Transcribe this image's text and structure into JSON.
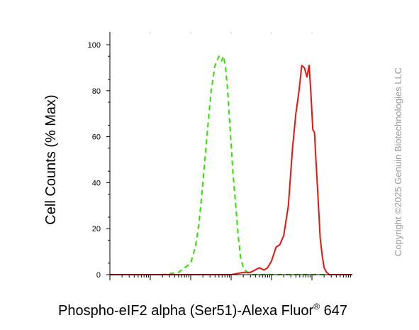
{
  "chart_data": {
    "type": "line",
    "title": "",
    "xlabel": "Phospho-eIF2 alpha (Ser51)-Alexa Fluor",
    "xlabel_superscript": "®",
    "xlabel_suffix": " 647",
    "ylabel": "Cell Counts (% Max)",
    "x_scale": "log",
    "xlim": [
      10,
      10000000
    ],
    "ylim": [
      0,
      100
    ],
    "yticks": [
      "0",
      "20",
      "40",
      "60",
      "80",
      "100"
    ],
    "grid": false,
    "legend": "none",
    "series": [
      {
        "style": "dashed",
        "color": "#33dd00",
        "x": [
          10,
          50,
          200,
          500,
          1000,
          1300,
          1600,
          2000,
          2600,
          3200,
          4000,
          5000,
          5800,
          6500,
          7300,
          8200,
          9500,
          11000,
          13000,
          15000,
          17000,
          20000,
          25000,
          30000,
          40000,
          60000,
          100000,
          1000000,
          10000000
        ],
        "values": [
          0,
          0,
          0,
          1,
          5,
          12,
          22,
          40,
          63,
          80,
          91,
          95,
          93,
          95,
          90,
          80,
          63,
          45,
          30,
          17,
          8,
          3,
          1,
          0,
          0,
          0,
          0,
          0,
          0
        ]
      },
      {
        "style": "solid",
        "color": "#ee1111",
        "x": [
          10,
          10000,
          20000,
          30000,
          50000,
          65000,
          80000,
          100000,
          130000,
          160000,
          200000,
          260000,
          330000,
          400000,
          480000,
          560000,
          650000,
          750000,
          850000,
          950000,
          1050000,
          1150000,
          1300000,
          1450000,
          1600000,
          1800000,
          2000000,
          2300000,
          2700000,
          3100000,
          3600000,
          4200000,
          5000000,
          10000000
        ],
        "values": [
          0,
          0,
          1,
          1,
          3,
          2,
          3,
          6,
          12,
          13,
          17,
          30,
          55,
          70,
          80,
          91,
          90,
          86,
          91,
          78,
          63,
          62,
          45,
          30,
          16,
          8,
          3,
          1,
          0,
          0,
          0,
          0,
          0,
          0
        ]
      }
    ]
  },
  "copyright": "Copyright ©2025 Genuin Biotechnologies LLC"
}
